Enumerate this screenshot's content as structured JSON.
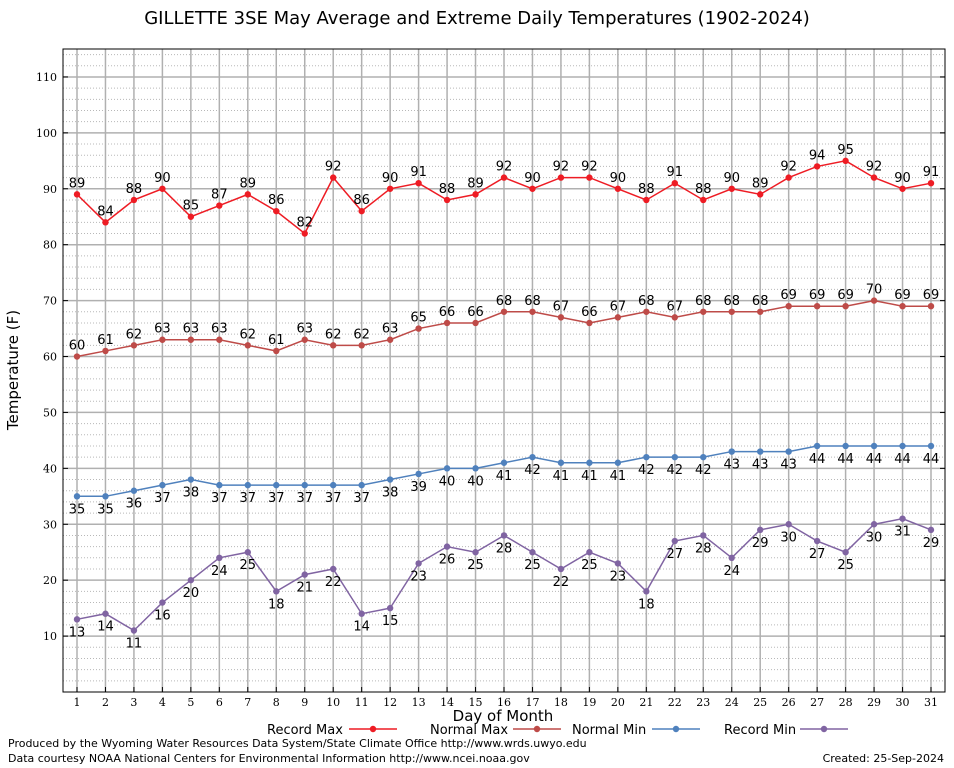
{
  "chart_data": {
    "type": "line",
    "title": "GILLETTE 3SE May Average and Extreme Daily Temperatures (1902-2024)",
    "xlabel": "Day of Month",
    "ylabel": "Temperature (F)",
    "xlim": [
      1,
      31
    ],
    "ylim": [
      0,
      115
    ],
    "yticks": [
      10,
      20,
      30,
      40,
      50,
      60,
      70,
      80,
      90,
      100,
      110
    ],
    "categories": [
      "1",
      "2",
      "3",
      "4",
      "5",
      "6",
      "7",
      "8",
      "9",
      "10",
      "11",
      "12",
      "13",
      "14",
      "15",
      "16",
      "17",
      "18",
      "19",
      "20",
      "21",
      "22",
      "23",
      "24",
      "25",
      "26",
      "27",
      "28",
      "29",
      "30",
      "31"
    ],
    "grid": true,
    "legend_position": "bottom",
    "series": [
      {
        "name": "Record Max",
        "color": "#ee1c24",
        "label_position": "above",
        "values": [
          89,
          84,
          88,
          90,
          85,
          87,
          89,
          86,
          82,
          92,
          86,
          90,
          91,
          88,
          89,
          92,
          90,
          92,
          92,
          90,
          88,
          91,
          88,
          90,
          89,
          92,
          94,
          95,
          92,
          90,
          91
        ]
      },
      {
        "name": "Normal Max",
        "color": "#be4b48",
        "label_position": "above",
        "values": [
          60,
          61,
          62,
          63,
          63,
          63,
          62,
          61,
          63,
          62,
          62,
          63,
          65,
          66,
          66,
          68,
          68,
          67,
          66,
          67,
          68,
          67,
          68,
          68,
          68,
          69,
          69,
          69,
          70,
          69,
          69
        ]
      },
      {
        "name": "Normal Min",
        "color": "#4f81bd",
        "label_position": "below",
        "values": [
          35,
          35,
          36,
          37,
          38,
          37,
          37,
          37,
          37,
          37,
          37,
          38,
          39,
          40,
          40,
          41,
          42,
          41,
          41,
          41,
          42,
          42,
          42,
          43,
          43,
          43,
          44,
          44,
          44,
          44,
          44
        ]
      },
      {
        "name": "Record Min",
        "color": "#8064a2",
        "label_position": "below",
        "values": [
          13,
          14,
          11,
          16,
          20,
          24,
          25,
          18,
          21,
          22,
          14,
          15,
          23,
          26,
          25,
          28,
          25,
          22,
          25,
          23,
          18,
          27,
          28,
          24,
          29,
          30,
          27,
          25,
          30,
          31,
          29
        ]
      }
    ]
  },
  "footer": {
    "line1": "Produced by the Wyoming Water Resources Data System/State Climate Office http://www.wrds.uwyo.edu",
    "line2": "Data courtesy NOAA National Centers for Environmental Information http://www.ncei.noaa.gov",
    "created": "Created:  25-Sep-2024"
  }
}
